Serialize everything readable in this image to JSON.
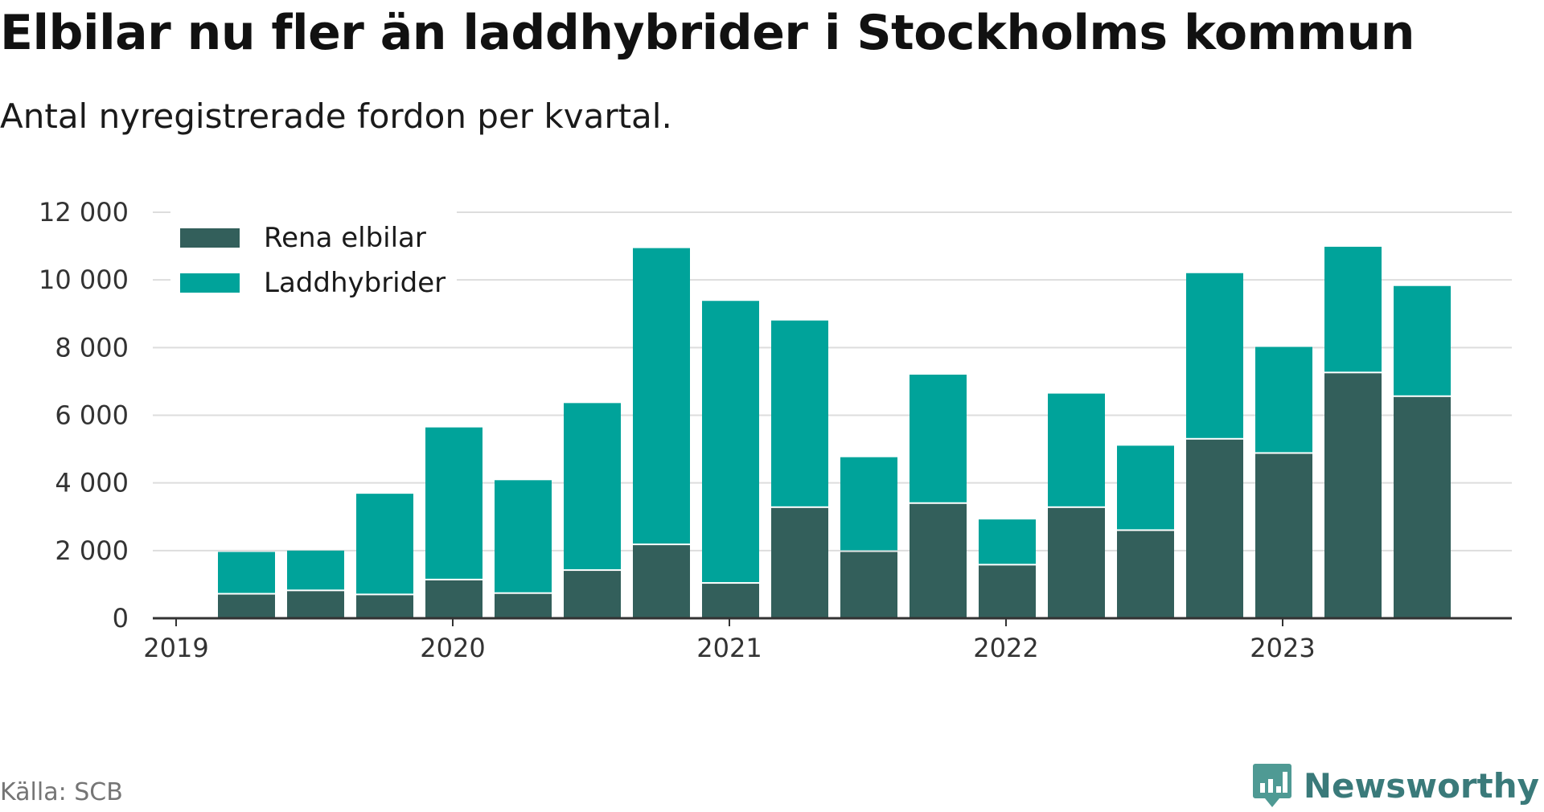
{
  "title": "Elbilar nu fler än laddhybrider i Stockholms kommun",
  "subtitle": "Antal nyregistrerade fordon per kvartal.",
  "source": "Källa: SCB",
  "brand": {
    "name": "Newsworthy",
    "icon": "newsworthy-logo-icon"
  },
  "colors": {
    "rena_elbilar": "#335f5b",
    "laddhybrider": "#00a39a",
    "grid": "#dddddd",
    "axis": "#333333"
  },
  "chart_data": {
    "type": "bar",
    "stacked": true,
    "x_axis": {
      "ticks": [
        "2019",
        "2020",
        "2021",
        "2022",
        "2023"
      ]
    },
    "y_axis": {
      "ticks": [
        "0",
        "2 000",
        "4 000",
        "6 000",
        "8 000",
        "10 000",
        "12 000"
      ],
      "ylim": [
        0,
        12000
      ]
    },
    "grid": true,
    "legend_position": "top-left",
    "categories": [
      "2019 Q2",
      "2019 Q3",
      "2019 Q4",
      "2020 Q1",
      "2020 Q2",
      "2020 Q3",
      "2020 Q4",
      "2021 Q1",
      "2021 Q2",
      "2021 Q3",
      "2021 Q4",
      "2022 Q1",
      "2022 Q2",
      "2022 Q3",
      "2022 Q4",
      "2023 Q1",
      "2023 Q2",
      "2023 Q3"
    ],
    "series": [
      {
        "name": "Rena elbilar",
        "color": "#335f5b",
        "values": [
          700,
          800,
          680,
          1120,
          720,
          1400,
          2160,
          1020,
          3260,
          1960,
          3380,
          1560,
          3260,
          2580,
          5280,
          4860,
          7240,
          6540
        ]
      },
      {
        "name": "Laddhybrider",
        "color": "#00a39a",
        "values": [
          1260,
          1200,
          3000,
          4520,
          3360,
          4960,
          8780,
          8360,
          5540,
          2800,
          3820,
          1360,
          3380,
          2520,
          4920,
          3160,
          3740,
          3280
        ]
      }
    ]
  }
}
